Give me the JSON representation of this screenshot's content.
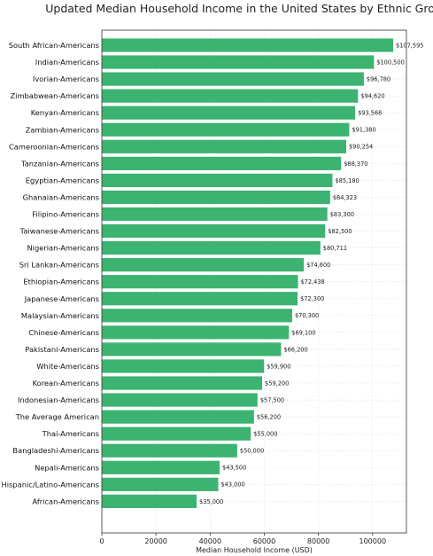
{
  "chart_data": {
    "type": "bar",
    "orientation": "horizontal",
    "title": "Updated Median Household Income in the United States by Ethnic Group",
    "xlabel": "Median Household Income (USD)",
    "ylabel": "",
    "xlim": [
      0,
      112500
    ],
    "xticks": [
      0,
      20000,
      40000,
      60000,
      80000,
      100000
    ],
    "xtick_labels": [
      "0",
      "20000",
      "40000",
      "60000",
      "80000",
      "100000"
    ],
    "grid": true,
    "bar_color": "#3cb371",
    "categories": [
      "South African-Americans",
      "Indian-Americans",
      "Ivorian-Americans",
      "Zimbabwean-Americans",
      "Kenyan-Americans",
      "Zambian-Americans",
      "Cameroonian-Americans",
      "Tanzanian-Americans",
      "Egyptian-Americans",
      "Ghanaian-Americans",
      "Filipino-Americans",
      "Taiwanese-Americans",
      "Nigerian-Americans",
      "Sri Lankan-Americans",
      "Ethiopian-Americans",
      "Japanese-Americans",
      "Malaysian-Americans",
      "Chinese-Americans",
      "Pakistani-Americans",
      "White-Americans",
      "Korean-Americans",
      "Indonesian-Americans",
      "The Average American",
      "Thai-Americans",
      "Bangladeshi-Americans",
      "Nepali-Americans",
      "Hispanic/Latino-Americans",
      "African-Americans"
    ],
    "values": [
      107595,
      100500,
      96780,
      94620,
      93568,
      91380,
      90254,
      88370,
      85180,
      84323,
      83300,
      82500,
      80711,
      74600,
      72438,
      72300,
      70300,
      69100,
      66200,
      59900,
      59200,
      57500,
      56200,
      55000,
      50000,
      43500,
      43000,
      35000
    ],
    "value_labels": [
      "$107,595",
      "$100,500",
      "$96,780",
      "$94,620",
      "$93,568",
      "$91,380",
      "$90,254",
      "$88,370",
      "$85,180",
      "$84,323",
      "$83,300",
      "$82,500",
      "$80,711",
      "$74,600",
      "$72,438",
      "$72,300",
      "$70,300",
      "$69,100",
      "$66,200",
      "$59,900",
      "$59,200",
      "$57,500",
      "$56,200",
      "$55,000",
      "$50,000",
      "$43,500",
      "$43,000",
      "$35,000"
    ]
  }
}
